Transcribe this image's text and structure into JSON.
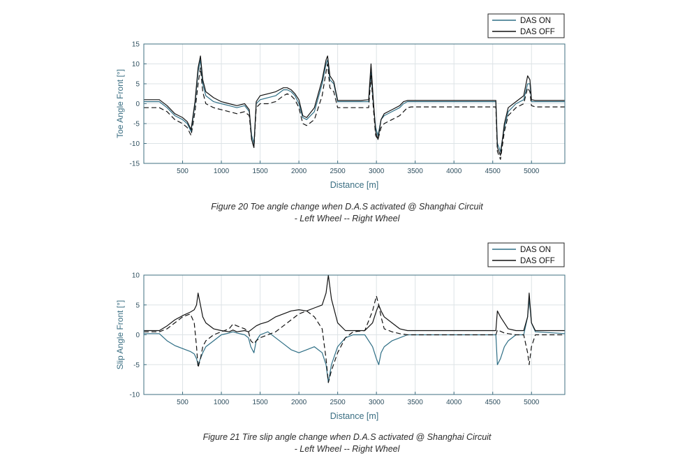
{
  "colors": {
    "axis": "#3f6f80",
    "tick_text": "#2f4f5f",
    "label_text": "#3a6e82",
    "grid": "#dde3e6",
    "das_on": "#2e6e85",
    "das_off": "#111111",
    "caption": "#2b2b2b"
  },
  "captions": {
    "fig20_line1": "Figure 20 Toe angle change when D.A.S activated @ Shanghai Circuit",
    "fig20_line2": "- Left Wheel -- Right Wheel",
    "fig21_line1": "Figure 21 Tire slip angle change when D.A.S activated @ Shanghai Circuit",
    "fig21_line2": "- Left Wheel -- Right Wheel"
  },
  "chart_data": [
    {
      "type": "line",
      "title": "",
      "xlabel": "Distance [m]",
      "ylabel": "Toe Angle Front [°]",
      "xlim": [
        0,
        5430
      ],
      "ylim": [
        -15,
        15
      ],
      "xticks": [
        500,
        1000,
        1500,
        2000,
        2500,
        3000,
        3500,
        4000,
        4500,
        5000
      ],
      "yticks": [
        15,
        10,
        5,
        0,
        -5,
        -10,
        -15
      ],
      "grid": true,
      "legend": {
        "position": "top-right",
        "entries": [
          "DAS ON",
          "DAS OFF"
        ]
      },
      "series": [
        {
          "name": "DAS ON",
          "line": "solid",
          "x": [
            0,
            200,
            300,
            400,
            500,
            560,
            610,
            660,
            700,
            730,
            760,
            800,
            900,
            1000,
            1100,
            1200,
            1300,
            1360,
            1390,
            1420,
            1450,
            1500,
            1600,
            1700,
            1800,
            1850,
            1900,
            1950,
            2000,
            2050,
            2100,
            2200,
            2300,
            2350,
            2370,
            2400,
            2450,
            2500,
            2600,
            2800,
            2900,
            2930,
            2960,
            2990,
            3020,
            3060,
            3100,
            3200,
            3300,
            3350,
            3400,
            3450,
            3500,
            4000,
            4500,
            4540,
            4560,
            4600,
            4650,
            4700,
            4800,
            4900,
            4950,
            4980,
            5000,
            5050,
            5430
          ],
          "y": [
            0.5,
            0.5,
            -1,
            -3,
            -4,
            -5,
            -7,
            0,
            8,
            11,
            5,
            2,
            0.5,
            0,
            -0.5,
            -1,
            -0.5,
            -2,
            -8,
            -10,
            0,
            1,
            1.5,
            2,
            3.5,
            3.5,
            3,
            2,
            0,
            -3.5,
            -4,
            -2,
            5,
            10,
            11,
            6,
            5,
            0.5,
            0.5,
            0.5,
            0.5,
            8,
            0,
            -6,
            -8,
            -4,
            -3,
            -2,
            -1,
            0,
            0.5,
            0.5,
            0.5,
            0.5,
            0.5,
            0.5,
            -10,
            -12,
            -6,
            -2,
            0,
            1,
            5,
            5,
            0.5,
            0.5,
            0.5
          ]
        },
        {
          "name": "DAS OFF",
          "line": "solid",
          "x": [
            0,
            200,
            300,
            400,
            500,
            560,
            610,
            660,
            700,
            730,
            760,
            800,
            900,
            1000,
            1100,
            1200,
            1300,
            1360,
            1390,
            1420,
            1450,
            1500,
            1600,
            1700,
            1800,
            1850,
            1900,
            1950,
            2000,
            2050,
            2100,
            2200,
            2300,
            2350,
            2370,
            2400,
            2450,
            2500,
            2600,
            2800,
            2900,
            2930,
            2960,
            2990,
            3020,
            3060,
            3100,
            3200,
            3300,
            3350,
            3400,
            3450,
            3500,
            4000,
            4500,
            4540,
            4560,
            4600,
            4650,
            4700,
            4800,
            4900,
            4950,
            4980,
            5000,
            5050,
            5430
          ],
          "y": [
            1,
            1,
            -0.5,
            -2.5,
            -3.5,
            -4.5,
            -6.5,
            0.5,
            9,
            12,
            6,
            3,
            1.5,
            0.5,
            0,
            -0.5,
            0,
            -1.5,
            -9,
            -11,
            0.5,
            2,
            2.5,
            3,
            4,
            4,
            3.5,
            2.5,
            1,
            -3,
            -3.5,
            -1,
            6,
            11,
            12,
            7,
            5.5,
            0.8,
            0.8,
            0.8,
            1,
            10,
            1,
            -7,
            -9,
            -4,
            -2.5,
            -1.5,
            -0.5,
            0.5,
            0.8,
            0.8,
            0.8,
            0.8,
            0.8,
            0.8,
            -11,
            -13,
            -5,
            -1,
            0.5,
            2,
            7,
            6,
            1,
            0.8,
            0.8
          ]
        },
        {
          "name": "",
          "line": "dashed",
          "x": [
            0,
            200,
            300,
            400,
            500,
            560,
            610,
            660,
            700,
            730,
            760,
            800,
            900,
            1000,
            1100,
            1200,
            1300,
            1360,
            1390,
            1420,
            1450,
            1500,
            1600,
            1700,
            1800,
            1850,
            1900,
            1950,
            2000,
            2050,
            2100,
            2200,
            2300,
            2350,
            2370,
            2400,
            2450,
            2500,
            2600,
            2800,
            2900,
            2930,
            2960,
            2990,
            3020,
            3060,
            3100,
            3200,
            3300,
            3350,
            3400,
            3450,
            3500,
            4000,
            4500,
            4540,
            4560,
            4600,
            4650,
            4700,
            4800,
            4900,
            4950,
            4980,
            5000,
            5050,
            5430
          ],
          "y": [
            -1,
            -1,
            -2,
            -4,
            -5,
            -6,
            -8,
            -2,
            5,
            9,
            3,
            0,
            -1,
            -1.5,
            -2,
            -2.5,
            -2,
            -3,
            -9,
            -11,
            -1,
            0,
            0,
            0.5,
            2,
            2.5,
            2,
            1,
            -1,
            -5,
            -5.5,
            -4,
            2,
            8,
            10,
            4,
            3,
            -1,
            -1,
            -1,
            -1,
            7,
            -1,
            -8,
            -9,
            -6,
            -5,
            -4,
            -3,
            -2,
            -1,
            -0.8,
            -0.8,
            -0.8,
            -0.8,
            -0.8,
            -12,
            -14,
            -7,
            -3,
            -1,
            0,
            4,
            3,
            -0.5,
            -0.8,
            -0.8
          ]
        }
      ]
    },
    {
      "type": "line",
      "title": "",
      "xlabel": "Distance [m]",
      "ylabel": "Slip Angle Front [°]",
      "xlim": [
        0,
        5430
      ],
      "ylim": [
        -10,
        10
      ],
      "xticks": [
        500,
        1000,
        1500,
        2000,
        2500,
        3000,
        3500,
        4000,
        4500,
        5000
      ],
      "yticks": [
        10,
        5,
        0,
        -5,
        -10
      ],
      "grid": true,
      "legend": {
        "position": "top-right",
        "entries": [
          "DAS ON",
          "DAS OFF"
        ]
      },
      "series": [
        {
          "name": "DAS ON",
          "line": "solid",
          "x": [
            0,
            200,
            300,
            400,
            500,
            600,
            650,
            680,
            700,
            730,
            760,
            800,
            900,
            1000,
            1100,
            1150,
            1200,
            1300,
            1350,
            1380,
            1420,
            1450,
            1500,
            1600,
            1700,
            1800,
            1900,
            2000,
            2100,
            2200,
            2300,
            2350,
            2380,
            2420,
            2500,
            2600,
            2700,
            2850,
            2950,
            3000,
            3030,
            3060,
            3100,
            3200,
            3300,
            3400,
            3500,
            4000,
            4500,
            4540,
            4560,
            4600,
            4650,
            4700,
            4800,
            4900,
            4950,
            4970,
            5000,
            5050,
            5430
          ],
          "y": [
            0.2,
            0.2,
            -1,
            -1.8,
            -2.3,
            -2.8,
            -3.2,
            -4,
            -5,
            -4,
            -3,
            -2,
            -1,
            0,
            0.3,
            0.5,
            0.3,
            0,
            -0.5,
            -2,
            -3,
            -1,
            0,
            0.5,
            -0.5,
            -1.5,
            -2.5,
            -3,
            -2.5,
            -2,
            -3,
            -5,
            -8,
            -5,
            -2,
            -0.5,
            0,
            0,
            -2,
            -4,
            -5,
            -3,
            -2,
            -1,
            -0.5,
            0,
            0,
            0,
            0,
            0,
            -5,
            -4,
            -2,
            -1,
            0,
            0,
            3,
            6,
            2,
            0.5,
            0.2
          ]
        },
        {
          "name": "DAS OFF",
          "line": "solid",
          "x": [
            0,
            200,
            300,
            400,
            500,
            600,
            650,
            680,
            700,
            730,
            760,
            800,
            900,
            1000,
            1100,
            1150,
            1200,
            1300,
            1350,
            1380,
            1420,
            1450,
            1500,
            1600,
            1700,
            1800,
            1900,
            2000,
            2100,
            2200,
            2300,
            2350,
            2380,
            2420,
            2500,
            2600,
            2700,
            2850,
            2950,
            3000,
            3030,
            3060,
            3100,
            3200,
            3300,
            3400,
            3500,
            4000,
            4500,
            4540,
            4560,
            4600,
            4650,
            4700,
            4800,
            4900,
            4950,
            4970,
            5000,
            5050,
            5430
          ],
          "y": [
            0.7,
            0.7,
            1.5,
            2.5,
            3.2,
            3.8,
            4.2,
            5,
            7,
            5,
            3,
            2,
            1,
            0.7,
            0.5,
            0.8,
            0.5,
            0.7,
            0.5,
            0.8,
            1.2,
            1.5,
            1.8,
            2.2,
            3,
            3.5,
            4,
            4.2,
            4,
            4.5,
            5,
            7,
            10,
            6,
            2,
            0.7,
            0.7,
            0.7,
            2,
            4,
            5,
            4,
            3,
            2,
            1,
            0.7,
            0.7,
            0.7,
            0.7,
            0.7,
            4,
            3,
            2,
            1,
            0.7,
            0.7,
            3,
            7,
            2,
            0.7,
            0.7
          ]
        },
        {
          "name": "",
          "line": "dashed",
          "x": [
            0,
            200,
            300,
            400,
            500,
            600,
            650,
            680,
            700,
            730,
            760,
            800,
            900,
            1000,
            1100,
            1150,
            1200,
            1300,
            1350,
            1380,
            1420,
            1450,
            1500,
            1600,
            1700,
            1800,
            1900,
            2000,
            2100,
            2200,
            2300,
            2350,
            2380,
            2420,
            2500,
            2600,
            2700,
            2850,
            2950,
            3000,
            3030,
            3060,
            3100,
            3200,
            3300,
            3400,
            3500,
            4000,
            4500,
            4540,
            4560,
            4600,
            4650,
            4700,
            4800,
            4900,
            4950,
            4970,
            5000,
            5050,
            5430
          ],
          "y": [
            0.5,
            0.5,
            1,
            2,
            3,
            3.5,
            2,
            -2,
            -5.5,
            -4,
            -2,
            -1,
            0,
            0.5,
            1,
            1.8,
            1.5,
            1,
            0.5,
            -1,
            -1.5,
            -1,
            -0.5,
            0,
            0.5,
            1.5,
            2.5,
            3.5,
            4,
            3,
            1,
            -4,
            -8,
            -6,
            -3,
            -0.5,
            0.5,
            0.7,
            4,
            6.5,
            5,
            3,
            1,
            0.5,
            0.2,
            0,
            0,
            0,
            0,
            0,
            0.8,
            0.6,
            0.3,
            0.2,
            0,
            0,
            -3,
            -5,
            -2,
            0,
            0
          ]
        }
      ]
    }
  ]
}
